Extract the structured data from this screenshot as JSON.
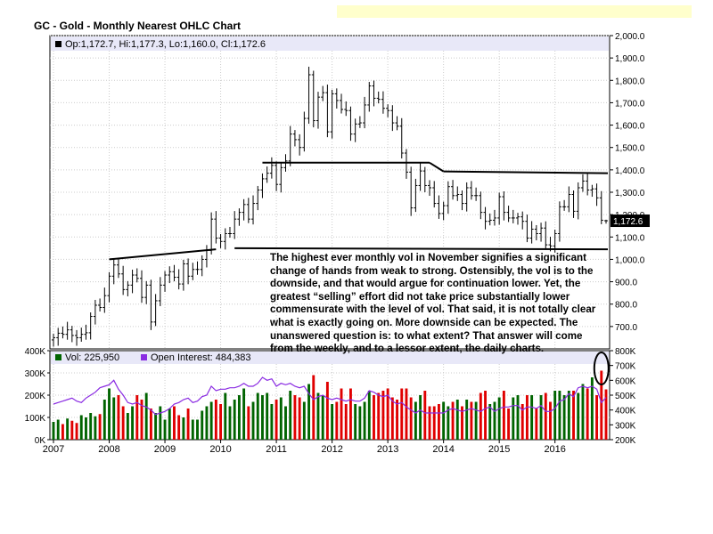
{
  "page": {
    "title": "GC - Gold - Monthly Nearest OHLC Chart",
    "price_legend": "Op:1,172.7, Hi:1,177.3, Lo:1,160.0, Cl:1,172.6",
    "last_price_label": "1,172.6",
    "vol_legend": "Vol: 225,950",
    "oi_legend": "Open Interest: 484,383",
    "annotation": "The highest ever monthly vol in November signifies a significant change of hands from weak to strong.  Ostensibly, the vol is to the downside, and that would argue for continuation lower.  Yet, the greatest “selling” effort did not take price substantially lower commensurate with the level of vol.  That said, it is not totally clear what is exactly going on.  More downside can be expected. The unanswered question is: to what extent?  That answer will come from the weekly, and to a lessor extent, the daily charts.",
    "colors": {
      "volume_up": "#006400",
      "volume_down": "#e00000",
      "open_interest": "#8a2be2",
      "price_bar": "#000000",
      "panel_bg": "#e8e8f8"
    }
  },
  "chart_data": [
    {
      "type": "ohlc",
      "title": "GC - Gold - Monthly Nearest OHLC Chart",
      "x_labels": [
        "2007",
        "2008",
        "2009",
        "2010",
        "2011",
        "2012",
        "2013",
        "2014",
        "2015",
        "2016"
      ],
      "x_range": [
        "2007-01",
        "2016-12"
      ],
      "y_axis_side": "right",
      "ylim": [
        600,
        2000
      ],
      "y_ticks": [
        "700.0",
        "800.0",
        "900.0",
        "1,000.0",
        "1,100.0",
        "1,200.0",
        "1,300.0",
        "1,400.0",
        "1,500.0",
        "1,600.0",
        "1,700.0",
        "1,800.0",
        "1,900.0",
        "2,000.0"
      ],
      "last_bar": {
        "open": 1172.7,
        "high": 1177.3,
        "low": 1160.0,
        "close": 1172.6
      },
      "grid": true,
      "months": [
        "2007-01",
        "2007-02",
        "2007-03",
        "2007-04",
        "2007-05",
        "2007-06",
        "2007-07",
        "2007-08",
        "2007-09",
        "2007-10",
        "2007-11",
        "2007-12",
        "2008-01",
        "2008-02",
        "2008-03",
        "2008-04",
        "2008-05",
        "2008-06",
        "2008-07",
        "2008-08",
        "2008-09",
        "2008-10",
        "2008-11",
        "2008-12",
        "2009-01",
        "2009-02",
        "2009-03",
        "2009-04",
        "2009-05",
        "2009-06",
        "2009-07",
        "2009-08",
        "2009-09",
        "2009-10",
        "2009-11",
        "2009-12",
        "2010-01",
        "2010-02",
        "2010-03",
        "2010-04",
        "2010-05",
        "2010-06",
        "2010-07",
        "2010-08",
        "2010-09",
        "2010-10",
        "2010-11",
        "2010-12",
        "2011-01",
        "2011-02",
        "2011-03",
        "2011-04",
        "2011-05",
        "2011-06",
        "2011-07",
        "2011-08",
        "2011-09",
        "2011-10",
        "2011-11",
        "2011-12",
        "2012-01",
        "2012-02",
        "2012-03",
        "2012-04",
        "2012-05",
        "2012-06",
        "2012-07",
        "2012-08",
        "2012-09",
        "2012-10",
        "2012-11",
        "2012-12",
        "2013-01",
        "2013-02",
        "2013-03",
        "2013-04",
        "2013-05",
        "2013-06",
        "2013-07",
        "2013-08",
        "2013-09",
        "2013-10",
        "2013-11",
        "2013-12",
        "2014-01",
        "2014-02",
        "2014-03",
        "2014-04",
        "2014-05",
        "2014-06",
        "2014-07",
        "2014-08",
        "2014-09",
        "2014-10",
        "2014-11",
        "2014-12",
        "2015-01",
        "2015-02",
        "2015-03",
        "2015-04",
        "2015-05",
        "2015-06",
        "2015-07",
        "2015-08",
        "2015-09",
        "2015-10",
        "2015-11",
        "2015-12",
        "2016-01",
        "2016-02",
        "2016-03",
        "2016-04",
        "2016-05",
        "2016-06",
        "2016-07",
        "2016-08",
        "2016-09",
        "2016-10",
        "2016-11",
        "2016-12"
      ],
      "close": [
        650,
        670,
        665,
        685,
        660,
        650,
        665,
        672,
        745,
        795,
        785,
        838,
        925,
        975,
        935,
        865,
        885,
        930,
        915,
        830,
        885,
        720,
        815,
        885,
        930,
        945,
        920,
        890,
        980,
        925,
        955,
        955,
        1000,
        1040,
        1180,
        1095,
        1080,
        1115,
        1115,
        1180,
        1210,
        1245,
        1180,
        1250,
        1310,
        1360,
        1385,
        1420,
        1335,
        1410,
        1440,
        1560,
        1535,
        1500,
        1630,
        1825,
        1620,
        1725,
        1745,
        1570,
        1740,
        1710,
        1670,
        1665,
        1560,
        1605,
        1610,
        1690,
        1775,
        1720,
        1715,
        1675,
        1665,
        1610,
        1595,
        1475,
        1390,
        1230,
        1330,
        1395,
        1330,
        1320,
        1250,
        1205,
        1240,
        1325,
        1285,
        1290,
        1250,
        1320,
        1285,
        1285,
        1210,
        1170,
        1175,
        1185,
        1280,
        1210,
        1185,
        1185,
        1190,
        1170,
        1095,
        1135,
        1115,
        1140,
        1065,
        1060,
        1115,
        1235,
        1235,
        1290,
        1215,
        1320,
        1350,
        1310,
        1315,
        1275,
        1175,
        1172.6
      ],
      "series_note": "high/low bars approximated around monthly close"
    },
    {
      "type": "bar+line",
      "legend": [
        "Vol: 225,950",
        "Open Interest: 484,383"
      ],
      "volume_ylim": [
        0,
        400000
      ],
      "volume_ticks": [
        "0K",
        "100K",
        "200K",
        "300K",
        "400K"
      ],
      "oi_ylim": [
        200000,
        800000
      ],
      "oi_ticks": [
        "200K",
        "300K",
        "400K",
        "500K",
        "600K",
        "700K",
        "800K"
      ],
      "volume": [
        80000,
        90000,
        70000,
        95000,
        85000,
        75000,
        110000,
        100000,
        120000,
        105000,
        115000,
        180000,
        230000,
        190000,
        200000,
        150000,
        120000,
        150000,
        200000,
        180000,
        210000,
        140000,
        120000,
        150000,
        90000,
        140000,
        150000,
        110000,
        100000,
        140000,
        90000,
        90000,
        130000,
        150000,
        170000,
        180000,
        160000,
        210000,
        150000,
        180000,
        200000,
        230000,
        150000,
        170000,
        210000,
        200000,
        210000,
        160000,
        180000,
        190000,
        150000,
        220000,
        200000,
        190000,
        170000,
        250000,
        290000,
        210000,
        200000,
        260000,
        160000,
        170000,
        230000,
        160000,
        230000,
        160000,
        150000,
        170000,
        220000,
        200000,
        210000,
        220000,
        230000,
        190000,
        180000,
        230000,
        230000,
        190000,
        170000,
        200000,
        220000,
        150000,
        150000,
        160000,
        170000,
        150000,
        170000,
        180000,
        150000,
        180000,
        170000,
        170000,
        210000,
        220000,
        160000,
        170000,
        190000,
        220000,
        140000,
        190000,
        200000,
        160000,
        200000,
        200000,
        140000,
        200000,
        210000,
        170000,
        220000,
        220000,
        200000,
        220000,
        220000,
        210000,
        250000,
        230000,
        280000,
        200000,
        310000,
        225950
      ],
      "open_interest": [
        440000,
        450000,
        460000,
        470000,
        480000,
        460000,
        450000,
        480000,
        500000,
        520000,
        550000,
        560000,
        570000,
        600000,
        540000,
        500000,
        450000,
        440000,
        450000,
        430000,
        420000,
        400000,
        370000,
        380000,
        390000,
        410000,
        440000,
        450000,
        470000,
        480000,
        450000,
        460000,
        490000,
        500000,
        560000,
        530000,
        540000,
        540000,
        550000,
        550000,
        560000,
        580000,
        560000,
        560000,
        580000,
        620000,
        600000,
        610000,
        560000,
        580000,
        570000,
        580000,
        560000,
        550000,
        560000,
        510000,
        470000,
        490000,
        500000,
        480000,
        470000,
        480000,
        470000,
        460000,
        470000,
        460000,
        460000,
        480000,
        530000,
        520000,
        500000,
        490000,
        500000,
        460000,
        440000,
        450000,
        420000,
        400000,
        380000,
        400000,
        380000,
        380000,
        380000,
        380000,
        380000,
        400000,
        410000,
        400000,
        390000,
        400000,
        410000,
        400000,
        390000,
        410000,
        420000,
        390000,
        410000,
        420000,
        420000,
        430000,
        430000,
        400000,
        420000,
        420000,
        410000,
        430000,
        390000,
        390000,
        410000,
        460000,
        470000,
        510000,
        490000,
        550000,
        560000,
        550000,
        560000,
        540000,
        450000,
        484383
      ]
    }
  ]
}
